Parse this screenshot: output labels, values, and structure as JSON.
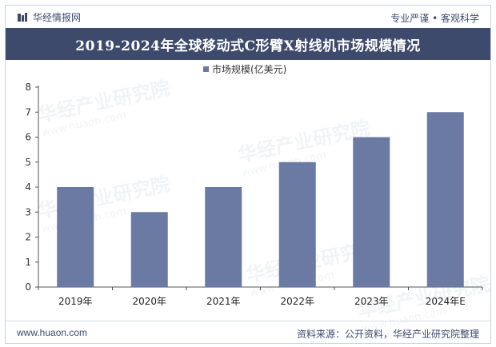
{
  "header": {
    "brand": "华经情报网",
    "slogan": "专业严谨 • 客观科学"
  },
  "title": "2019-2024年全球移动式C形臂X射线机市场规模情况",
  "chart_data": {
    "type": "bar",
    "title": "2019-2024年全球移动式C形臂X射线机市场规模情况",
    "categories": [
      "2019年",
      "2020年",
      "2021年",
      "2022年",
      "2023年",
      "2024年E"
    ],
    "series": [
      {
        "name": "市场规模(亿美元)",
        "values": [
          4,
          3,
          4,
          5,
          6,
          7
        ]
      }
    ],
    "ylim": [
      0,
      8
    ],
    "yticks": [
      0,
      1,
      2,
      3,
      4,
      5,
      6,
      7,
      8
    ],
    "legend_position": "top-center",
    "colors": {
      "bar": "#6a7aa2",
      "axis": "#555555"
    }
  },
  "watermark": {
    "text": "华经产业研究院",
    "sub": "www.huaon.com"
  },
  "footer": {
    "url": "www.huaon.com",
    "source": "资料来源：公开资料，华经产业研究院整理"
  }
}
